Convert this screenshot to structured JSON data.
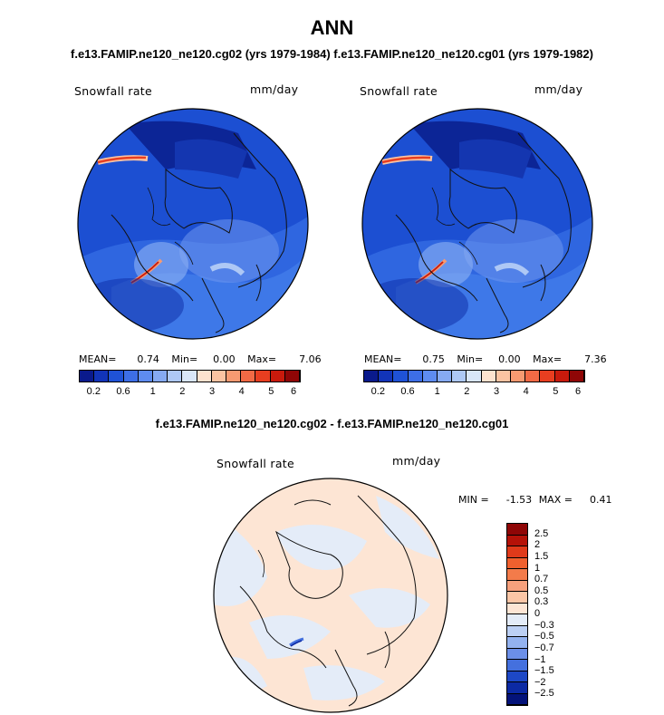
{
  "header": {
    "title": "ANN",
    "subtitle": "f.e13.FAMIP.ne120_ne120.cg02 (yrs 1979-1984) f.e13.FAMIP.ne120_ne120.cg01 (yrs 1979-1982)",
    "diff_title": "f.e13.FAMIP.ne120_ne120.cg02 - f.e13.FAMIP.ne120_ne120.cg01"
  },
  "panels": {
    "left": {
      "variable": "Snowfall rate",
      "units": "mm/day",
      "mean_label": "MEAN=",
      "mean_value": "0.74",
      "min_label": "Min=",
      "min_value": "0.00",
      "max_label": "Max=",
      "max_value": "7.06"
    },
    "right": {
      "variable": "Snowfall rate",
      "units": "mm/day",
      "mean_label": "MEAN=",
      "mean_value": "0.75",
      "min_label": "Min=",
      "min_value": "0.00",
      "max_label": "Max=",
      "max_value": "7.36"
    },
    "diff": {
      "variable": "Snowfall rate",
      "units": "mm/day",
      "min_label": "MIN =",
      "min_value": "-1.53",
      "max_label": "MAX =",
      "max_value": "0.41"
    }
  },
  "colorbar_horizontal": {
    "colors": [
      "#0a1a8c",
      "#1234b8",
      "#1f52d6",
      "#3d6ee6",
      "#5e8cf0",
      "#86aaf2",
      "#aec8f5",
      "#d9e6f8",
      "#fde2cf",
      "#fbc3a2",
      "#f79a71",
      "#f26a45",
      "#e83e20",
      "#c81a0c",
      "#8f0606"
    ],
    "ticks": [
      "0.2",
      "0.6",
      "1",
      "2",
      "3",
      "4",
      "5",
      "6"
    ]
  },
  "colorbar_vertical": {
    "colors": [
      "#8f0606",
      "#b51208",
      "#e03a1a",
      "#f0602e",
      "#f37b4a",
      "#f6a07c",
      "#fbc6a6",
      "#fde5d4",
      "#e4ecf8",
      "#bcd0f4",
      "#93b2ef",
      "#6b8fe8",
      "#4470de",
      "#1d48c6",
      "#0c2aa4",
      "#04137a"
    ],
    "ticks": [
      "2.5",
      "2",
      "1.5",
      "1",
      "0.7",
      "0.5",
      "0.3",
      "0",
      "−0.3",
      "−0.5",
      "−0.7",
      "−1",
      "−1.5",
      "−2",
      "−2.5"
    ]
  }
}
